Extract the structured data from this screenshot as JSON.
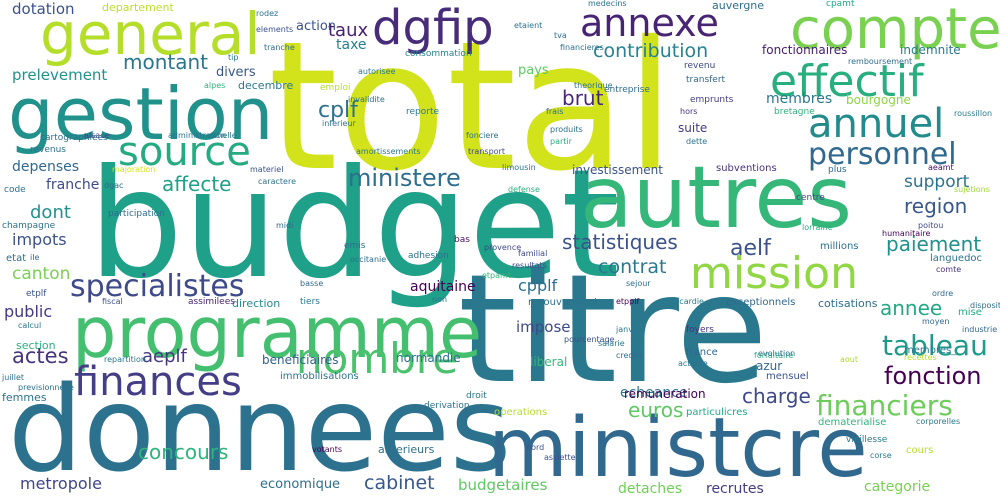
{
  "words": [
    {
      "text": "total",
      "color": "#d2e21b"
    },
    {
      "text": "budget",
      "color": "#1fa088"
    },
    {
      "text": "titre",
      "color": "#2a788e"
    },
    {
      "text": "donnees",
      "color": "#2c728e"
    },
    {
      "text": "ministcre",
      "color": "#31688e"
    },
    {
      "text": "autres",
      "color": "#35b779"
    },
    {
      "text": "programme",
      "color": "#44bf70"
    },
    {
      "text": "gestion",
      "color": "#21918c"
    },
    {
      "text": "general",
      "color": "#b5de2b"
    },
    {
      "text": "compte",
      "color": "#7ad151"
    },
    {
      "text": "mission",
      "color": "#90d743"
    },
    {
      "text": "finances",
      "color": "#433e85"
    },
    {
      "text": "nombre",
      "color": "#4ac16d"
    },
    {
      "text": "effectif",
      "color": "#29af7f"
    },
    {
      "text": "annexe",
      "color": "#482475"
    },
    {
      "text": "dgfip",
      "color": "#472c7a"
    },
    {
      "text": "source",
      "color": "#25ab82"
    },
    {
      "text": "annuel",
      "color": "#228c8d"
    },
    {
      "text": "personnel",
      "color": "#31688e"
    },
    {
      "text": "specialistes",
      "color": "#3e4a89"
    },
    {
      "text": "ministere",
      "color": "#2e6e8e"
    },
    {
      "text": "tableau",
      "color": "#1f9a8a"
    },
    {
      "text": "financiers",
      "color": "#6ccd5a"
    },
    {
      "text": "fonction",
      "color": "#440154"
    },
    {
      "text": "statistiques",
      "color": "#3b528b"
    },
    {
      "text": "contribution",
      "color": "#26828e"
    },
    {
      "text": "montant",
      "color": "#2a768e"
    },
    {
      "text": "affecte",
      "color": "#1fa088"
    },
    {
      "text": "region",
      "color": "#38588c"
    },
    {
      "text": "paiement",
      "color": "#21918c"
    },
    {
      "text": "support",
      "color": "#2c728e"
    },
    {
      "text": "actes",
      "color": "#46337e"
    },
    {
      "text": "contrat",
      "color": "#2a788e"
    },
    {
      "text": "aelf",
      "color": "#3b528b"
    },
    {
      "text": "charge",
      "color": "#3e4989"
    },
    {
      "text": "euros",
      "color": "#5ec962"
    },
    {
      "text": "concours",
      "color": "#2fb47c"
    },
    {
      "text": "cabinet",
      "color": "#38588c"
    },
    {
      "text": "annee",
      "color": "#22a884"
    },
    {
      "text": "brut",
      "color": "#482878"
    },
    {
      "text": "taux",
      "color": "#481f70"
    },
    {
      "text": "cplf",
      "color": "#2d708e"
    },
    {
      "text": "membres",
      "color": "#2a788e"
    },
    {
      "text": "dont",
      "color": "#21918c"
    },
    {
      "text": "impots",
      "color": "#3b528b"
    },
    {
      "text": "canton",
      "color": "#7ad151"
    },
    {
      "text": "prelevement",
      "color": "#20928c"
    },
    {
      "text": "dotation",
      "color": "#3b528b"
    },
    {
      "text": "public",
      "color": "#443983"
    },
    {
      "text": "aeplf",
      "color": "#453781"
    },
    {
      "text": "metropole",
      "color": "#404688"
    },
    {
      "text": "depenses",
      "color": "#31688e"
    },
    {
      "text": "franche",
      "color": "#3e4a89"
    },
    {
      "text": "economique",
      "color": "#2d708e"
    },
    {
      "text": "budgetaires",
      "color": "#5ec962"
    },
    {
      "text": "detaches",
      "color": "#70cf57"
    },
    {
      "text": "recrutes",
      "color": "#433e85"
    },
    {
      "text": "categorie",
      "color": "#7ad151"
    },
    {
      "text": "fonctionnaires",
      "color": "#481b6d"
    },
    {
      "text": "indemnite",
      "color": "#2a788e"
    },
    {
      "text": "bourgogne",
      "color": "#8bd646"
    },
    {
      "text": "aquitaine",
      "color": "#440154"
    },
    {
      "text": "cpplf",
      "color": "#2e6e8e"
    },
    {
      "text": "impose",
      "color": "#3e4a89"
    },
    {
      "text": "normandie",
      "color": "#2c728e"
    },
    {
      "text": "echeance",
      "color": "#2a788e"
    },
    {
      "text": "remuneration",
      "color": "#440154"
    },
    {
      "text": "taxe",
      "color": "#26828e"
    },
    {
      "text": "action",
      "color": "#3b528b"
    },
    {
      "text": "departement",
      "color": "#bddf26"
    },
    {
      "text": "pays",
      "color": "#5ec962"
    },
    {
      "text": "suite",
      "color": "#443983"
    },
    {
      "text": "divers",
      "color": "#38588c"
    },
    {
      "text": "decembre",
      "color": "#2a788e"
    },
    {
      "text": "section",
      "color": "#2ab07f"
    },
    {
      "text": "beneficiaires",
      "color": "#355f8d"
    },
    {
      "text": "liberal",
      "color": "#35b779"
    },
    {
      "text": "azur",
      "color": "#31688e"
    },
    {
      "text": "mensuel",
      "color": "#3b528b"
    },
    {
      "text": "investissement",
      "color": "#3b528b"
    },
    {
      "text": "recouvrement",
      "color": "#2c728e"
    },
    {
      "text": "immobilisations",
      "color": "#2c728e"
    },
    {
      "text": "anterieurs",
      "color": "#2c728e"
    },
    {
      "text": "auvergne",
      "color": "#2e6e8e"
    },
    {
      "text": "cotisations",
      "color": "#2e6e8e"
    },
    {
      "text": "consommation",
      "color": "#26828e"
    },
    {
      "text": "languedoc",
      "color": "#2c728e"
    },
    {
      "text": "millions",
      "color": "#2e6e8e"
    },
    {
      "text": "subventions",
      "color": "#46337e"
    },
    {
      "text": "france",
      "color": "#31688e"
    },
    {
      "text": "exceptionnels",
      "color": "#31688e"
    },
    {
      "text": "particulicres",
      "color": "#22a884"
    },
    {
      "text": "operations",
      "color": "#b5de2b"
    },
    {
      "text": "direction",
      "color": "#23898e"
    },
    {
      "text": "membres_",
      "color": "#2a788e"
    },
    {
      "text": "mise",
      "color": "#22a884"
    },
    {
      "text": "comte",
      "color": "#46337e"
    },
    {
      "text": "entreprise",
      "color": "#2e6e8e"
    },
    {
      "text": "revenu",
      "color": "#3e4989"
    },
    {
      "text": "transfert",
      "color": "#31688e"
    },
    {
      "text": "emprunts",
      "color": "#433e85"
    },
    {
      "text": "hors",
      "color": "#46337e"
    },
    {
      "text": "bretagne",
      "color": "#2fb47c"
    },
    {
      "text": "cpamt",
      "color": "#22a884"
    },
    {
      "text": "remboursement",
      "color": "#2e6e8e"
    },
    {
      "text": "roussillon",
      "color": "#2a788e"
    },
    {
      "text": "poitou",
      "color": "#3e4a89"
    },
    {
      "text": "humanitaire",
      "color": "#440154"
    },
    {
      "text": "lorraine",
      "color": "#2ab07f"
    },
    {
      "text": "centre",
      "color": "#3e4989"
    },
    {
      "text": "plus",
      "color": "#31688e"
    },
    {
      "text": "aeamt",
      "color": "#471063"
    },
    {
      "text": "sujetions",
      "color": "#a0da39"
    },
    {
      "text": "ordre",
      "color": "#31688e"
    },
    {
      "text": "disposition",
      "color": "#2e6e8e"
    },
    {
      "text": "moyen",
      "color": "#31688e"
    },
    {
      "text": "industrie",
      "color": "#31688e"
    },
    {
      "text": "recettes",
      "color": "#b5de2b"
    },
    {
      "text": "corporelles",
      "color": "#2a788e"
    },
    {
      "text": "dematerialise",
      "color": "#2fb47c"
    },
    {
      "text": "vieillesse",
      "color": "#287c8e"
    },
    {
      "text": "corse",
      "color": "#2a788e"
    },
    {
      "text": "cours",
      "color": "#b5de2b"
    },
    {
      "text": "aout",
      "color": "#a8db34"
    },
    {
      "text": "forfaitaire",
      "color": "#2ab07f"
    },
    {
      "text": "evolution",
      "color": "#2c728e"
    },
    {
      "text": "activite",
      "color": "#2c728e"
    },
    {
      "text": "credits",
      "color": "#2e6e8e"
    },
    {
      "text": "janvier",
      "color": "#2a788e"
    },
    {
      "text": "salarie",
      "color": "#2a788e"
    },
    {
      "text": "pourcentage",
      "color": "#3b528b"
    },
    {
      "text": "foyers",
      "color": "#46337e"
    },
    {
      "text": "picardie",
      "color": "#2a788e"
    },
    {
      "text": "etpplf",
      "color": "#440154"
    },
    {
      "text": "sejour",
      "color": "#2e6e8e"
    },
    {
      "text": "assiette",
      "color": "#3b528b"
    },
    {
      "text": "nord",
      "color": "#3b528b"
    },
    {
      "text": "votants",
      "color": "#440154"
    },
    {
      "text": "derivation",
      "color": "#2c728e"
    },
    {
      "text": "droit",
      "color": "#2a788e"
    },
    {
      "text": "non",
      "color": "#2e6e8e"
    },
    {
      "text": "etpamt",
      "color": "#35b779"
    },
    {
      "text": "resultats",
      "color": "#3e4a89"
    },
    {
      "text": "bas",
      "color": "#471063"
    },
    {
      "text": "provence",
      "color": "#3e4989"
    },
    {
      "text": "familial",
      "color": "#3e4989"
    },
    {
      "text": "adhesion",
      "color": "#2c728e"
    },
    {
      "text": "emis",
      "color": "#2e6e8e"
    },
    {
      "text": "occitanie",
      "color": "#2e6e8e"
    },
    {
      "text": "midi",
      "color": "#31688e"
    },
    {
      "text": "basse",
      "color": "#31688e"
    },
    {
      "text": "tiers",
      "color": "#2a788e"
    },
    {
      "text": "assimilees",
      "color": "#482475"
    },
    {
      "text": "fiscal",
      "color": "#3b528b"
    },
    {
      "text": "repartition",
      "color": "#2a788e"
    },
    {
      "text": "calcul",
      "color": "#2a788e"
    },
    {
      "text": "juillet",
      "color": "#2c728e"
    },
    {
      "text": "previsionnelle",
      "color": "#2c728e"
    },
    {
      "text": "femmes",
      "color": "#2c728e"
    },
    {
      "text": "etplf",
      "color": "#3b528b"
    },
    {
      "text": "etat",
      "color": "#2e6e8e"
    },
    {
      "text": "ile",
      "color": "#31688e"
    },
    {
      "text": "champagne",
      "color": "#2c728e"
    },
    {
      "text": "code",
      "color": "#2e6e8e"
    },
    {
      "text": "participation",
      "color": "#2e6e8e"
    },
    {
      "text": "dgac",
      "color": "#2e6e8e"
    },
    {
      "text": "majoration",
      "color": "#d2e21b"
    },
    {
      "text": "caractere",
      "color": "#2c728e"
    },
    {
      "text": "materiel",
      "color": "#3b528b"
    },
    {
      "text": "revenus",
      "color": "#2c728e"
    },
    {
      "text": "cartographiees",
      "color": "#2e6e8e"
    },
    {
      "text": "alsace",
      "color": "#3e4a89"
    },
    {
      "text": "administration",
      "color": "#2c728e"
    },
    {
      "text": "echelle",
      "color": "#2a788e"
    },
    {
      "text": "amortissements",
      "color": "#2a788e"
    },
    {
      "text": "reporte",
      "color": "#2a788e"
    },
    {
      "text": "emploi",
      "color": "#b5de2b"
    },
    {
      "text": "invalidite",
      "color": "#2c728e"
    },
    {
      "text": "autorisee",
      "color": "#2a788e"
    },
    {
      "text": "tip",
      "color": "#2a788e"
    },
    {
      "text": "alpes",
      "color": "#2ab07f"
    },
    {
      "text": "rodez",
      "color": "#2c728e"
    },
    {
      "text": "elements",
      "color": "#3b528b"
    },
    {
      "text": "tranche",
      "color": "#2e6e8e"
    },
    {
      "text": "etaient",
      "color": "#2c728e"
    },
    {
      "text": "tva",
      "color": "#2c728e"
    },
    {
      "text": "medecins",
      "color": "#2c728e"
    },
    {
      "text": "financieres",
      "color": "#2c728e"
    },
    {
      "text": "theorique",
      "color": "#2c728e"
    },
    {
      "text": "frais",
      "color": "#2c728e"
    },
    {
      "text": "produits",
      "color": "#2c728e"
    },
    {
      "text": "partir",
      "color": "#2ab07f"
    },
    {
      "text": "fonciere",
      "color": "#2c728e"
    },
    {
      "text": "transport",
      "color": "#3e4a89"
    },
    {
      "text": "limousin",
      "color": "#2a788e"
    },
    {
      "text": "defense",
      "color": "#2ab07f"
    },
    {
      "text": "dette",
      "color": "#2c728e"
    },
    {
      "text": "inferieur",
      "color": "#2c728e"
    },
    {
      "text": "drecg",
      "color": "#3b528b"
    }
  ]
}
